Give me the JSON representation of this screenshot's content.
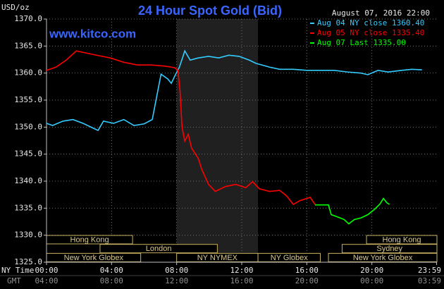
{
  "chart_data": {
    "type": "line",
    "title": "24 Hour Spot Gold (Bid)",
    "unit": "USD/oz",
    "timestamp": "August 07, 2016 22:00",
    "watermark": "www.kitco.com",
    "xlim": [
      0,
      24
    ],
    "ylim": [
      1325,
      1370
    ],
    "yticks": [
      {
        "value": 1325,
        "label": "1325.0"
      },
      {
        "value": 1330,
        "label": "1330.0"
      },
      {
        "value": 1335,
        "label": "1335.0"
      },
      {
        "value": 1340,
        "label": "1340.0"
      },
      {
        "value": 1345,
        "label": "1345.0"
      },
      {
        "value": 1350,
        "label": "1350.0"
      },
      {
        "value": 1355,
        "label": "1355.0"
      },
      {
        "value": 1360,
        "label": "1360.0"
      },
      {
        "value": 1365,
        "label": "1365.0"
      },
      {
        "value": 1370,
        "label": "1370.0"
      }
    ],
    "xticks": [
      {
        "value": 0,
        "label": "00:00"
      },
      {
        "value": 4,
        "label": "04:00"
      },
      {
        "value": 8,
        "label": "08:00"
      },
      {
        "value": 12,
        "label": "12:00"
      },
      {
        "value": 16,
        "label": "16:00"
      },
      {
        "value": 20,
        "label": "20:00"
      },
      {
        "value": 23.98,
        "label": "23:59"
      }
    ],
    "x_axis_label": "NY Time",
    "x2_axis_label": "GMT",
    "x2ticks": [
      {
        "value": 0,
        "label": "04:00"
      },
      {
        "value": 4,
        "label": "08:00"
      },
      {
        "value": 8,
        "label": "12:00"
      },
      {
        "value": 12,
        "label": "16:00"
      },
      {
        "value": 16,
        "label": "20:00"
      },
      {
        "value": 20,
        "label": "00:00"
      },
      {
        "value": 23.98,
        "label": "03:59"
      }
    ],
    "grid": true,
    "highlight": [
      8,
      13
    ],
    "sessions": [
      [
        {
          "label": "Hong Kong",
          "start": 0,
          "end": 5.29
        },
        {
          "label": "Hong Kong",
          "start": 19.67,
          "end": 24
        }
      ],
      [
        {
          "label": "London",
          "start": 3.29,
          "end": 10.5
        },
        {
          "label": "Sydney",
          "start": 18.17,
          "end": 24
        }
      ],
      [
        {
          "label": "New York Globex",
          "start": 0,
          "end": 5.79
        },
        {
          "label": "NY NYMEX",
          "start": 8,
          "end": 13
        },
        {
          "label": "NY Globex",
          "start": 13,
          "end": 16.83
        },
        {
          "label": "New York Globex",
          "start": 17.33,
          "end": 24
        }
      ]
    ],
    "series": [
      {
        "name": "Aug 04 NY close 1360.40",
        "color": "#33ccff",
        "x": [
          0,
          0.375,
          1.0,
          1.625,
          2.25,
          2.875,
          3.17,
          3.5,
          4.125,
          4.75,
          5.375,
          6.0,
          6.5,
          6.75,
          7.04,
          7.46,
          7.67,
          7.875,
          8.17,
          8.5,
          8.83,
          9.33,
          9.96,
          10.58,
          11.21,
          11.83,
          12.46,
          12.875,
          13.71,
          14.33,
          15.17,
          16.0,
          16.83,
          17.67,
          18.5,
          19.33,
          19.75,
          20.375,
          21.0,
          21.83,
          22.46,
          23.08
        ],
        "values": [
          1350.7,
          1350.3,
          1351.1,
          1351.4,
          1350.7,
          1349.8,
          1349.4,
          1351.1,
          1350.7,
          1351.4,
          1350.3,
          1350.6,
          1351.4,
          1355.3,
          1359.8,
          1358.9,
          1358.1,
          1359.4,
          1361.1,
          1364.1,
          1362.4,
          1362.8,
          1363.1,
          1362.8,
          1363.3,
          1363.1,
          1362.4,
          1361.8,
          1361.1,
          1360.7,
          1360.7,
          1360.5,
          1360.5,
          1360.5,
          1360.2,
          1360.0,
          1359.7,
          1360.5,
          1360.2,
          1360.5,
          1360.7,
          1360.6
        ]
      },
      {
        "name": "Aug 05 NY close 1335.40",
        "color": "#ff0000",
        "x": [
          0,
          0.58,
          1.21,
          1.83,
          2.46,
          3.08,
          3.92,
          4.75,
          5.58,
          6.42,
          7.25,
          7.875,
          8.08,
          8.21,
          8.33,
          8.5,
          8.71,
          8.92,
          9.33,
          9.54,
          9.96,
          10.375,
          11.0,
          11.625,
          12.25,
          12.67,
          13.08,
          13.71,
          14.33,
          14.75,
          15.17,
          15.58,
          16.21,
          16.5
        ],
        "values": [
          1360.5,
          1361.1,
          1362.4,
          1364.1,
          1363.7,
          1363.3,
          1362.8,
          1362.0,
          1361.5,
          1361.5,
          1361.3,
          1361.0,
          1360.5,
          1356.6,
          1350.0,
          1347.4,
          1348.7,
          1346.1,
          1344.2,
          1342.2,
          1339.4,
          1338.1,
          1339.0,
          1339.4,
          1338.8,
          1339.9,
          1338.6,
          1338.1,
          1338.3,
          1337.3,
          1335.7,
          1336.4,
          1337.0,
          1335.7
        ]
      },
      {
        "name": "Aug 07 Last 1335.00",
        "color": "#00ff00",
        "x": [
          16.5,
          17.33,
          17.5,
          17.875,
          18.29,
          18.58,
          18.92,
          19.33,
          19.75,
          20.17,
          20.5,
          20.71,
          20.92,
          21.08
        ],
        "values": [
          1335.6,
          1335.6,
          1333.8,
          1333.4,
          1332.9,
          1332.1,
          1332.9,
          1333.2,
          1333.8,
          1334.8,
          1335.8,
          1336.8,
          1336.0,
          1335.7
        ]
      }
    ]
  }
}
